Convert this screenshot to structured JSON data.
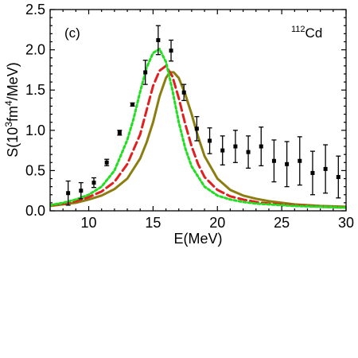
{
  "chart_data": {
    "type": "line",
    "panel_label": "(c)",
    "nucleus_label": {
      "mass": "112",
      "element": "Cd"
    },
    "xlabel": "E(MeV)",
    "ylabel": {
      "prefix": "S(10",
      "exp1": "3",
      "middle": "fm",
      "exp2": "4",
      "suffix": "/MeV)"
    },
    "xlim": [
      7,
      30
    ],
    "ylim": [
      0,
      2.5
    ],
    "xticks": [
      10,
      15,
      20,
      25,
      30
    ],
    "yticks": [
      0.0,
      0.5,
      1.0,
      1.5,
      2.0,
      2.5
    ],
    "ytick_labels": [
      "0.0",
      "0.5",
      "1.0",
      "1.5",
      "2.0",
      "2.5"
    ],
    "grid": false,
    "series": [
      {
        "style": "solid",
        "color": "#8b7d10",
        "x": [
          7,
          8,
          9,
          10,
          11,
          12,
          13,
          14,
          14.5,
          15,
          15.5,
          16,
          16.3,
          16.6,
          17,
          17.5,
          18,
          18.5,
          19,
          20,
          21,
          22,
          23,
          24,
          25,
          26,
          28,
          30
        ],
        "y": [
          0.06,
          0.08,
          0.1,
          0.14,
          0.19,
          0.27,
          0.4,
          0.65,
          0.85,
          1.1,
          1.42,
          1.65,
          1.72,
          1.72,
          1.65,
          1.45,
          1.2,
          0.92,
          0.68,
          0.4,
          0.26,
          0.19,
          0.15,
          0.12,
          0.1,
          0.08,
          0.06,
          0.05
        ]
      },
      {
        "style": "dashed",
        "color": "#e02020",
        "x": [
          7,
          8,
          9,
          10,
          11,
          12,
          13,
          14,
          14.5,
          15,
          15.5,
          16,
          16.5,
          17,
          17.5,
          18,
          18.5,
          19,
          20,
          21,
          22,
          23,
          24,
          25,
          26,
          28,
          30
        ],
        "y": [
          0.07,
          0.09,
          0.12,
          0.17,
          0.24,
          0.36,
          0.58,
          0.95,
          1.25,
          1.55,
          1.74,
          1.8,
          1.67,
          1.4,
          1.08,
          0.8,
          0.58,
          0.42,
          0.26,
          0.18,
          0.14,
          0.11,
          0.09,
          0.08,
          0.07,
          0.05,
          0.04
        ]
      },
      {
        "style": "dotted",
        "color": "#22dd22",
        "x": [
          7,
          8,
          9,
          10,
          11,
          12,
          13,
          13.5,
          14,
          14.5,
          15,
          15.5,
          16,
          16.5,
          17,
          17.5,
          18,
          19,
          20,
          21,
          22,
          23,
          24,
          25,
          26,
          28,
          30
        ],
        "y": [
          0.07,
          0.1,
          0.14,
          0.2,
          0.3,
          0.5,
          0.88,
          1.15,
          1.48,
          1.78,
          1.96,
          2.01,
          1.85,
          1.5,
          1.1,
          0.78,
          0.55,
          0.3,
          0.19,
          0.14,
          0.11,
          0.09,
          0.08,
          0.07,
          0.06,
          0.05,
          0.04
        ]
      }
    ],
    "data_points": [
      {
        "x": 8.4,
        "y": 0.22,
        "err": 0.15
      },
      {
        "x": 9.4,
        "y": 0.25,
        "err": 0.1
      },
      {
        "x": 10.4,
        "y": 0.35,
        "err": 0.06
      },
      {
        "x": 11.4,
        "y": 0.6,
        "err": 0.04
      },
      {
        "x": 12.4,
        "y": 0.97,
        "err": 0.03
      },
      {
        "x": 13.4,
        "y": 1.32,
        "err": 0.02
      },
      {
        "x": 14.4,
        "y": 1.72,
        "err": 0.15
      },
      {
        "x": 15.4,
        "y": 2.12,
        "err": 0.18
      },
      {
        "x": 16.4,
        "y": 1.99,
        "err": 0.13
      },
      {
        "x": 17.4,
        "y": 1.47,
        "err": 0.1
      },
      {
        "x": 18.4,
        "y": 1.02,
        "err": 0.15
      },
      {
        "x": 19.4,
        "y": 0.87,
        "err": 0.16
      },
      {
        "x": 20.4,
        "y": 0.75,
        "err": 0.18
      },
      {
        "x": 21.4,
        "y": 0.8,
        "err": 0.2
      },
      {
        "x": 22.4,
        "y": 0.73,
        "err": 0.2
      },
      {
        "x": 23.4,
        "y": 0.8,
        "err": 0.24
      },
      {
        "x": 24.4,
        "y": 0.62,
        "err": 0.26
      },
      {
        "x": 25.4,
        "y": 0.58,
        "err": 0.28
      },
      {
        "x": 26.4,
        "y": 0.62,
        "err": 0.3
      },
      {
        "x": 27.4,
        "y": 0.47,
        "err": 0.27
      },
      {
        "x": 28.4,
        "y": 0.52,
        "err": 0.3
      },
      {
        "x": 29.4,
        "y": 0.42,
        "err": 0.26
      }
    ]
  }
}
